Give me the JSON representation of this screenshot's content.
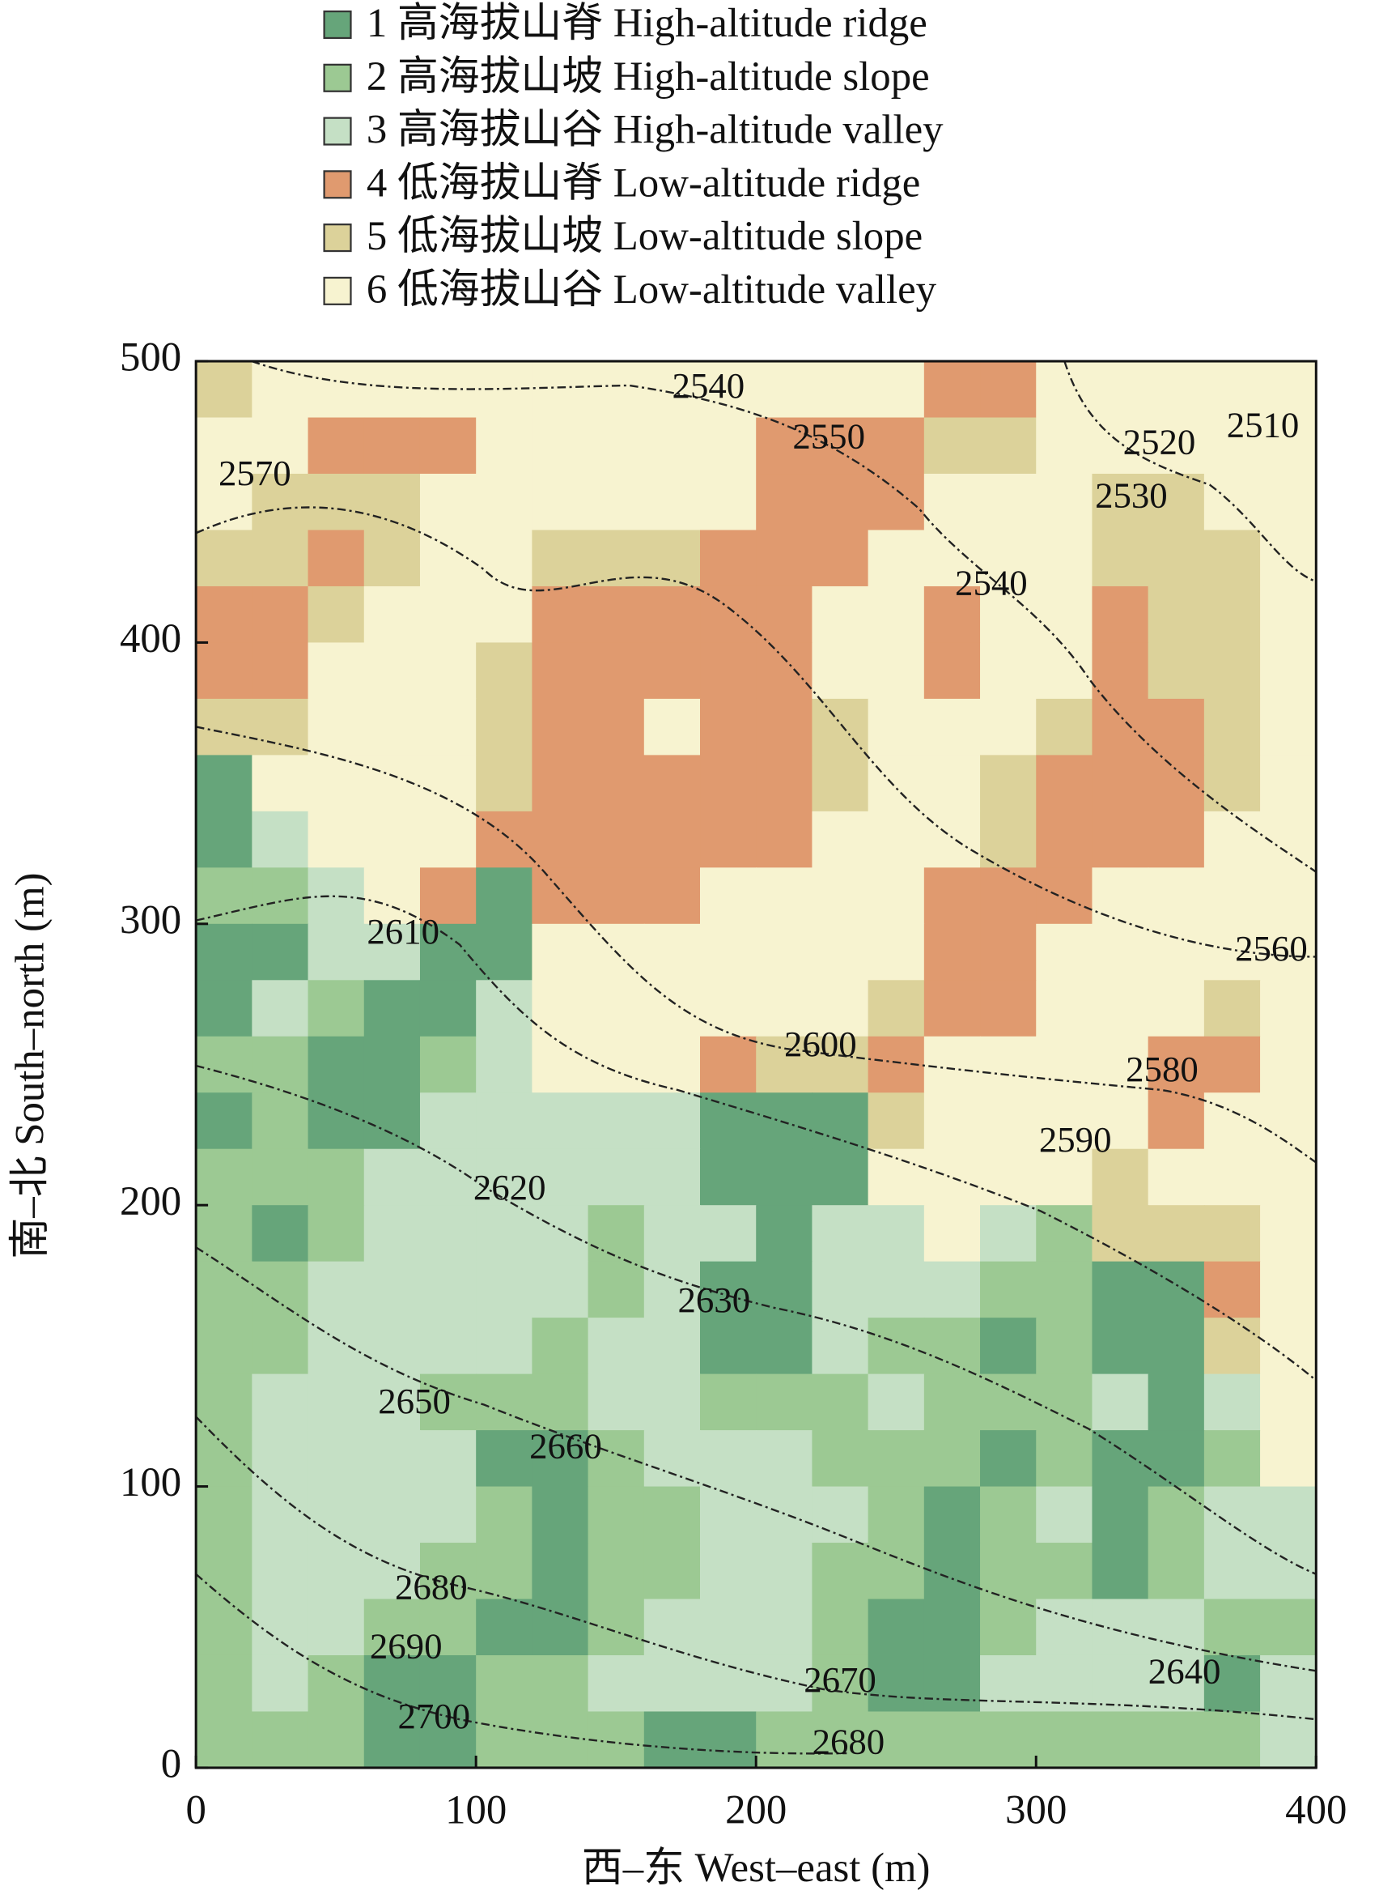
{
  "chart_data": {
    "type": "heatmap",
    "xlabel": "西–东 West–east (m)",
    "ylabel": "南–北 South–north (m)",
    "xlim": [
      0,
      400
    ],
    "ylim": [
      0,
      500
    ],
    "xticks": [
      0,
      100,
      200,
      300,
      400
    ],
    "yticks": [
      0,
      100,
      200,
      300,
      400,
      500
    ],
    "legend": [
      {
        "value": 1,
        "label": "1 高海拔山脊 High-altitude ridge",
        "color": "#66a57a"
      },
      {
        "value": 2,
        "label": "2 高海拔山坡 High-altitude slope",
        "color": "#9cc993"
      },
      {
        "value": 3,
        "label": "3 高海拔山谷 High-altitude valley",
        "color": "#c5e0c5"
      },
      {
        "value": 4,
        "label": "4 低海拔山脊 Low-altitude ridge",
        "color": "#e09a6f"
      },
      {
        "value": 5,
        "label": "5 低海拔山坡 Low-altitude slope",
        "color": "#dcd29a"
      },
      {
        "value": 6,
        "label": "6 低海拔山谷 Low-altitude valley",
        "color": "#f7f3d0"
      }
    ],
    "x": [
      10,
      30,
      50,
      70,
      90,
      110,
      130,
      150,
      170,
      190,
      210,
      230,
      250,
      270,
      290,
      310,
      330,
      350,
      370,
      390
    ],
    "y": [
      490,
      470,
      450,
      430,
      410,
      390,
      370,
      350,
      330,
      310,
      290,
      270,
      250,
      230,
      210,
      190,
      170,
      150,
      130,
      110,
      90,
      70,
      50,
      30,
      10
    ],
    "values": [
      [
        5,
        6,
        6,
        6,
        6,
        6,
        6,
        6,
        6,
        6,
        6,
        6,
        6,
        4,
        4,
        6,
        6,
        6,
        6,
        6
      ],
      [
        6,
        6,
        4,
        4,
        4,
        6,
        6,
        6,
        6,
        6,
        4,
        4,
        4,
        5,
        5,
        6,
        6,
        6,
        6,
        6
      ],
      [
        6,
        5,
        5,
        5,
        6,
        6,
        6,
        6,
        6,
        6,
        4,
        4,
        4,
        6,
        6,
        6,
        5,
        5,
        6,
        6
      ],
      [
        5,
        5,
        4,
        5,
        6,
        6,
        5,
        5,
        5,
        4,
        4,
        4,
        6,
        6,
        6,
        6,
        5,
        5,
        5,
        6
      ],
      [
        4,
        4,
        5,
        6,
        6,
        6,
        4,
        4,
        4,
        4,
        4,
        6,
        6,
        4,
        6,
        6,
        4,
        5,
        5,
        6
      ],
      [
        4,
        4,
        6,
        6,
        6,
        5,
        4,
        4,
        4,
        4,
        4,
        6,
        6,
        4,
        6,
        6,
        4,
        5,
        5,
        6
      ],
      [
        5,
        5,
        6,
        6,
        6,
        5,
        4,
        4,
        6,
        4,
        4,
        5,
        6,
        6,
        6,
        5,
        4,
        4,
        5,
        6
      ],
      [
        1,
        6,
        6,
        6,
        6,
        5,
        4,
        4,
        4,
        4,
        4,
        5,
        6,
        6,
        5,
        4,
        4,
        4,
        5,
        6
      ],
      [
        1,
        3,
        6,
        6,
        6,
        4,
        4,
        4,
        4,
        4,
        4,
        6,
        6,
        6,
        5,
        4,
        4,
        4,
        6,
        6
      ],
      [
        2,
        2,
        3,
        6,
        4,
        1,
        4,
        4,
        4,
        6,
        6,
        6,
        6,
        4,
        4,
        4,
        6,
        6,
        6,
        6
      ],
      [
        1,
        1,
        3,
        3,
        1,
        1,
        6,
        6,
        6,
        6,
        6,
        6,
        6,
        4,
        4,
        6,
        6,
        6,
        6,
        6
      ],
      [
        1,
        3,
        2,
        1,
        1,
        3,
        6,
        6,
        6,
        6,
        6,
        6,
        5,
        4,
        4,
        6,
        6,
        6,
        5,
        6
      ],
      [
        2,
        2,
        1,
        1,
        2,
        3,
        6,
        6,
        6,
        4,
        5,
        5,
        4,
        6,
        6,
        6,
        6,
        4,
        4,
        6
      ],
      [
        1,
        2,
        1,
        1,
        3,
        3,
        3,
        3,
        3,
        1,
        1,
        1,
        5,
        6,
        6,
        6,
        6,
        4,
        6,
        6
      ],
      [
        2,
        2,
        2,
        3,
        3,
        3,
        3,
        3,
        3,
        1,
        1,
        1,
        6,
        6,
        6,
        6,
        5,
        6,
        6,
        6
      ],
      [
        2,
        1,
        2,
        3,
        3,
        3,
        3,
        2,
        3,
        3,
        1,
        3,
        3,
        6,
        3,
        2,
        5,
        5,
        5,
        6
      ],
      [
        2,
        2,
        3,
        3,
        3,
        3,
        3,
        2,
        3,
        1,
        1,
        3,
        3,
        3,
        2,
        2,
        1,
        1,
        4,
        6
      ],
      [
        2,
        2,
        3,
        3,
        3,
        3,
        2,
        3,
        3,
        1,
        1,
        3,
        2,
        2,
        1,
        2,
        1,
        1,
        5,
        6
      ],
      [
        2,
        3,
        3,
        3,
        2,
        2,
        2,
        3,
        3,
        2,
        2,
        2,
        3,
        2,
        2,
        2,
        3,
        1,
        3,
        6
      ],
      [
        2,
        3,
        3,
        3,
        3,
        1,
        1,
        2,
        3,
        3,
        3,
        2,
        2,
        2,
        1,
        2,
        1,
        1,
        2,
        6
      ],
      [
        2,
        3,
        3,
        3,
        3,
        2,
        1,
        2,
        2,
        3,
        3,
        3,
        2,
        1,
        2,
        3,
        1,
        2,
        3,
        3
      ],
      [
        2,
        3,
        3,
        3,
        2,
        2,
        1,
        2,
        2,
        3,
        3,
        2,
        2,
        1,
        2,
        2,
        1,
        2,
        3,
        3
      ],
      [
        2,
        3,
        3,
        2,
        2,
        1,
        1,
        2,
        3,
        3,
        3,
        2,
        1,
        1,
        2,
        3,
        3,
        3,
        2,
        2
      ],
      [
        2,
        3,
        2,
        1,
        1,
        2,
        2,
        3,
        3,
        3,
        3,
        2,
        1,
        1,
        3,
        3,
        3,
        3,
        1,
        3
      ],
      [
        2,
        2,
        2,
        1,
        1,
        2,
        2,
        2,
        1,
        1,
        2,
        2,
        2,
        2,
        2,
        2,
        2,
        2,
        2,
        3
      ]
    ],
    "contour_labels": [
      {
        "value": 2540,
        "x": 183,
        "y": 490
      },
      {
        "value": 2550,
        "x": 226,
        "y": 472
      },
      {
        "value": 2570,
        "x": 21,
        "y": 459
      },
      {
        "value": 2520,
        "x": 344,
        "y": 470
      },
      {
        "value": 2510,
        "x": 381,
        "y": 476
      },
      {
        "value": 2530,
        "x": 334,
        "y": 451
      },
      {
        "value": 2540,
        "x": 284,
        "y": 420
      },
      {
        "value": 2610,
        "x": 74,
        "y": 296
      },
      {
        "value": 2560,
        "x": 384,
        "y": 290
      },
      {
        "value": 2600,
        "x": 223,
        "y": 256
      },
      {
        "value": 2580,
        "x": 345,
        "y": 247
      },
      {
        "value": 2590,
        "x": 314,
        "y": 222
      },
      {
        "value": 2620,
        "x": 112,
        "y": 205
      },
      {
        "value": 2630,
        "x": 185,
        "y": 165
      },
      {
        "value": 2650,
        "x": 78,
        "y": 129
      },
      {
        "value": 2660,
        "x": 132,
        "y": 113
      },
      {
        "value": 2680,
        "x": 84,
        "y": 63
      },
      {
        "value": 2690,
        "x": 75,
        "y": 42
      },
      {
        "value": 2670,
        "x": 230,
        "y": 30
      },
      {
        "value": 2640,
        "x": 353,
        "y": 33
      },
      {
        "value": 2700,
        "x": 85,
        "y": 17
      },
      {
        "value": 2680,
        "x": 233,
        "y": 8
      }
    ]
  }
}
